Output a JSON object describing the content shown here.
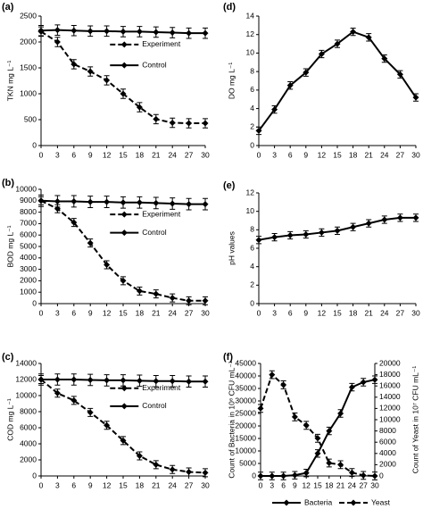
{
  "chart_data": [
    {
      "type": "line",
      "label": "(a)",
      "ylabel": "TKN mg L⁻¹",
      "x": [
        0,
        3,
        6,
        9,
        12,
        15,
        18,
        21,
        24,
        27,
        30
      ],
      "xlim": [
        0,
        30
      ],
      "xticks": [
        0,
        3,
        6,
        9,
        12,
        15,
        18,
        21,
        24,
        27,
        30
      ],
      "ylim": [
        0,
        2500
      ],
      "yticks": [
        0,
        500,
        1000,
        1500,
        2000,
        2500
      ],
      "legend": "right",
      "series": [
        {
          "name": "Experiment",
          "color": "#000000",
          "dash": true,
          "error": 90,
          "values": [
            2200,
            2000,
            1570,
            1430,
            1260,
            1000,
            740,
            510,
            440,
            430,
            430
          ]
        },
        {
          "name": "Control",
          "color": "#000000",
          "dash": false,
          "error": 100,
          "values": [
            2220,
            2230,
            2220,
            2210,
            2210,
            2200,
            2200,
            2190,
            2180,
            2170,
            2170
          ]
        }
      ]
    },
    {
      "type": "line",
      "label": "(b)",
      "ylabel": "BOD mg L⁻¹",
      "x": [
        0,
        3,
        6,
        9,
        12,
        15,
        18,
        21,
        24,
        27,
        30
      ],
      "xlim": [
        0,
        30
      ],
      "xticks": [
        0,
        3,
        6,
        9,
        12,
        15,
        18,
        21,
        24,
        27,
        30
      ],
      "ylim": [
        0,
        10000
      ],
      "yticks": [
        0,
        1000,
        2000,
        3000,
        4000,
        5000,
        6000,
        7000,
        8000,
        9000,
        10000
      ],
      "legend": "right",
      "series": [
        {
          "name": "Experiment",
          "color": "#000000",
          "dash": true,
          "error": 350,
          "values": [
            9000,
            8300,
            7100,
            5300,
            3400,
            2000,
            1100,
            850,
            500,
            250,
            250
          ]
        },
        {
          "name": "Control",
          "color": "#000000",
          "dash": false,
          "error": 500,
          "values": [
            9000,
            8950,
            8950,
            8900,
            8900,
            8850,
            8850,
            8800,
            8750,
            8700,
            8700
          ]
        }
      ]
    },
    {
      "type": "line",
      "label": "(c)",
      "ylabel": "COD mg L⁻¹",
      "x": [
        0,
        3,
        6,
        9,
        12,
        15,
        18,
        21,
        24,
        27,
        30
      ],
      "xlim": [
        0,
        30
      ],
      "xticks": [
        0,
        3,
        6,
        9,
        12,
        15,
        18,
        21,
        24,
        27,
        30
      ],
      "ylim": [
        0,
        14000
      ],
      "yticks": [
        0,
        2000,
        4000,
        6000,
        8000,
        10000,
        12000,
        14000
      ],
      "legend": "right",
      "series": [
        {
          "name": "Experiment",
          "color": "#000000",
          "dash": true,
          "error": 500,
          "values": [
            12000,
            10300,
            9400,
            7900,
            6300,
            4400,
            2500,
            1400,
            800,
            500,
            400
          ]
        },
        {
          "name": "Control",
          "color": "#000000",
          "dash": false,
          "error": 700,
          "values": [
            12000,
            12000,
            12000,
            11950,
            11900,
            11900,
            11850,
            11800,
            11800,
            11750,
            11750
          ]
        }
      ]
    },
    {
      "type": "line",
      "label": "(d)",
      "ylabel": "DO mg L⁻¹",
      "x": [
        0,
        3,
        6,
        9,
        12,
        15,
        18,
        21,
        24,
        27,
        30
      ],
      "xlim": [
        0,
        30
      ],
      "xticks": [
        0,
        3,
        6,
        9,
        12,
        15,
        18,
        21,
        24,
        27,
        30
      ],
      "ylim": [
        0,
        14
      ],
      "yticks": [
        0,
        2,
        4,
        6,
        8,
        10,
        12,
        14
      ],
      "series": [
        {
          "color": "#000000",
          "dash": false,
          "error": 0.4,
          "values": [
            1.6,
            3.9,
            6.5,
            7.9,
            9.9,
            11.0,
            12.3,
            11.7,
            9.4,
            7.7,
            5.2
          ]
        }
      ]
    },
    {
      "type": "line",
      "label": "(e)",
      "ylabel": "pH values",
      "x": [
        0,
        3,
        6,
        9,
        12,
        15,
        18,
        21,
        24,
        27,
        30
      ],
      "xlim": [
        0,
        30
      ],
      "xticks": [
        0,
        3,
        6,
        9,
        12,
        15,
        18,
        21,
        24,
        27,
        30
      ],
      "ylim": [
        0,
        12
      ],
      "yticks": [
        0,
        2,
        4,
        6,
        8,
        10,
        12
      ],
      "series": [
        {
          "color": "#000000",
          "dash": false,
          "error": 0.4,
          "values": [
            6.9,
            7.2,
            7.4,
            7.5,
            7.7,
            7.9,
            8.3,
            8.7,
            9.1,
            9.3,
            9.3
          ]
        }
      ]
    },
    {
      "type": "line",
      "label": "(f)",
      "ylabel": "Count of Bacteria in 10⁶ CFU mL⁻¹",
      "y2label": "Count of Yeast in 10⁷ CFU mL⁻¹",
      "x": [
        0,
        3,
        6,
        9,
        12,
        15,
        18,
        21,
        24,
        27,
        30
      ],
      "xlim": [
        0,
        30
      ],
      "xticks": [
        0,
        3,
        6,
        9,
        12,
        15,
        18,
        21,
        24,
        27,
        30
      ],
      "ylim": [
        0,
        45000
      ],
      "yticks": [
        0,
        5000,
        10000,
        15000,
        20000,
        25000,
        30000,
        35000,
        40000,
        45000
      ],
      "y2lim": [
        0,
        20000
      ],
      "y2ticks": [
        0,
        2000,
        4000,
        6000,
        8000,
        10000,
        12000,
        14000,
        16000,
        18000,
        20000
      ],
      "legend": "bottom",
      "series": [
        {
          "name": "Bacteria",
          "color": "#000000",
          "dash": false,
          "error": 1500,
          "values": [
            0,
            0,
            0,
            300,
            1200,
            9000,
            18000,
            25000,
            35500,
            37500,
            38500
          ]
        },
        {
          "name": "Yeast",
          "color": "#000000",
          "dash": true,
          "axis": "y2",
          "error": 700,
          "values": [
            12000,
            18000,
            16200,
            10500,
            9000,
            6700,
            2300,
            2000,
            600,
            100,
            0
          ]
        }
      ]
    }
  ]
}
